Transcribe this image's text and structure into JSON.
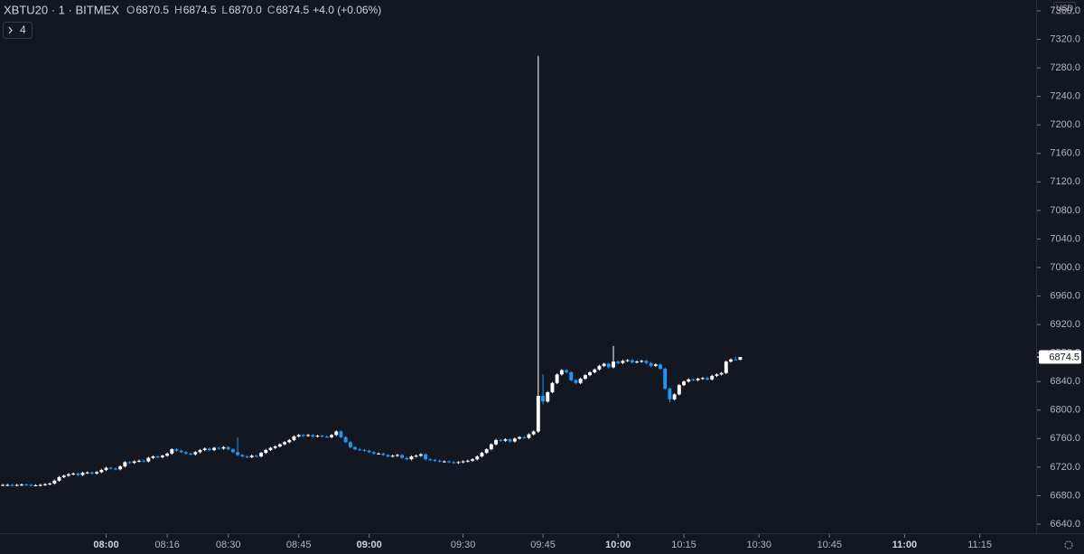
{
  "header": {
    "title": "XBTU20 · 1 · BITMEX",
    "ohlc": [
      {
        "key": "O",
        "value": "6870.5"
      },
      {
        "key": "H",
        "value": "6874.5"
      },
      {
        "key": "L",
        "value": "6870.0"
      },
      {
        "key": "C",
        "value": "6874.5"
      }
    ],
    "change": "+4.0 (+0.06%)",
    "indicators": "4"
  },
  "chart_data": {
    "type": "candlestick",
    "currency": "USD",
    "up_color": "#ffffff",
    "down_color": "#2196f3",
    "open": [
      6695,
      6695,
      6695,
      6694.5,
      6695,
      6695.5,
      6695,
      6694.5,
      6694.5,
      6695,
      6696,
      6697,
      6701,
      6706,
      6708,
      6710,
      6711,
      6709,
      6712,
      6712.5,
      6711,
      6713,
      6716,
      6719,
      6718,
      6717,
      6721,
      6727,
      6726,
      6728,
      6729,
      6728,
      6733,
      6735,
      6734,
      6736,
      6739,
      6745,
      6743,
      6741,
      6739,
      6738,
      6741,
      6744,
      6746,
      6744,
      6747,
      6746,
      6748,
      6745,
      6741,
      6737,
      6735,
      6734,
      6736,
      6735,
      6740,
      6744,
      6747,
      6749,
      6752,
      6755,
      6758,
      6763,
      6765,
      6764,
      6765,
      6763,
      6764,
      6763,
      6762,
      6765,
      6770,
      6762,
      6755,
      6748,
      6745,
      6744,
      6743,
      6741,
      6739,
      6739,
      6737,
      6735,
      6736,
      6737,
      6733,
      6731,
      6735,
      6736,
      6738,
      6731,
      6730,
      6729,
      6728,
      6728,
      6727,
      6726,
      6727,
      6728,
      6729,
      6731,
      6735,
      6740,
      6745,
      6752,
      6758,
      6757,
      6759,
      6756,
      6760,
      6762,
      6761,
      6766,
      6770,
      6820,
      6812,
      6825,
      6838,
      6850,
      6856,
      6853,
      6842,
      6838,
      6844,
      6849,
      6853,
      6857,
      6862,
      6865,
      6860,
      6868,
      6866,
      6869,
      6870,
      6867,
      6868,
      6869,
      6866,
      6862,
      6864,
      6858,
      6830,
      6815,
      6822,
      6835,
      6840,
      6843,
      6842,
      6844,
      6845,
      6843,
      6848,
      6850,
      6852,
      6868,
      6871,
      6870.5
    ],
    "high": [
      6696.5,
      6696.5,
      6696.5,
      6696.5,
      6697,
      6697,
      6696.5,
      6696,
      6696.5,
      6697.5,
      6698.5,
      6702.5,
      6707.5,
      6709.5,
      6711.5,
      6712.5,
      6712.5,
      6713.5,
      6714,
      6714,
      6714.5,
      6717.5,
      6720.5,
      6720.5,
      6719.5,
      6722.5,
      6728.5,
      6728.5,
      6729.5,
      6730.5,
      6730.5,
      6734.5,
      6736.5,
      6736.5,
      6737.5,
      6740.5,
      6746.5,
      6746.5,
      6744.5,
      6742.5,
      6740.5,
      6742.5,
      6745.5,
      6747.5,
      6747.5,
      6748.5,
      6748.5,
      6749.5,
      6749.5,
      6746.5,
      6762,
      6738.5,
      6736.5,
      6737.5,
      6737.5,
      6741.5,
      6745.5,
      6748.5,
      6750.5,
      6753.5,
      6756.5,
      6759.5,
      6764.5,
      6766.5,
      6766.5,
      6766.5,
      6766.5,
      6765.5,
      6765.5,
      6764.5,
      6766.5,
      6771.5,
      6771.5,
      6763.5,
      6756.5,
      6749.5,
      6746.5,
      6745.5,
      6744.5,
      6742.5,
      6740.5,
      6740.5,
      6738.5,
      6737.5,
      6738.5,
      6738.5,
      6734.5,
      6736.5,
      6737.5,
      6739.5,
      6739.5,
      6732.5,
      6731.5,
      6730.5,
      6729.5,
      6729.5,
      6728.5,
      6728.5,
      6729.5,
      6730.5,
      6732.5,
      6736.5,
      6741.5,
      6746.5,
      6753.5,
      6759.5,
      6759.5,
      6760.5,
      6760.5,
      6761.5,
      6763.5,
      6763.5,
      6767.5,
      6771.5,
      7297,
      6850,
      6826.5,
      6839.5,
      6851.5,
      6857.5,
      6857.5,
      6854.5,
      6843.5,
      6845.5,
      6850.5,
      6854.5,
      6858.5,
      6863.5,
      6866.5,
      6866.5,
      6890,
      6869.5,
      6870.5,
      6871.5,
      6871.5,
      6869.5,
      6870.5,
      6870.5,
      6867.5,
      6865.5,
      6865.5,
      6859.5,
      6831.5,
      6823.5,
      6836.5,
      6841.5,
      6844.5,
      6844.5,
      6845.5,
      6846.5,
      6846.5,
      6849.5,
      6851.5,
      6853.5,
      6869.5,
      6872.5,
      6875,
      6874.5
    ],
    "low": [
      6693.5,
      6693.5,
      6693,
      6693,
      6693.5,
      6693.5,
      6693,
      6693,
      6693,
      6693.5,
      6694.5,
      6695.5,
      6699.5,
      6704.5,
      6706.5,
      6708.5,
      6707.5,
      6707.5,
      6710.5,
      6709.5,
      6709.5,
      6711.5,
      6714.5,
      6716.5,
      6715.5,
      6715.5,
      6719.5,
      6724.5,
      6724.5,
      6726.5,
      6726.5,
      6726.5,
      6731.5,
      6732.5,
      6732.5,
      6734.5,
      6737.5,
      6741.5,
      6739.5,
      6737.5,
      6736.5,
      6736.5,
      6739.5,
      6742.5,
      6742.5,
      6742.5,
      6744.5,
      6744.5,
      6743.5,
      6739.5,
      6735.5,
      6733.5,
      6732.5,
      6732.5,
      6733.5,
      6733.5,
      6738.5,
      6742.5,
      6745.5,
      6747.5,
      6750.5,
      6753.5,
      6756.5,
      6761.5,
      6762.5,
      6762.5,
      6761.5,
      6761.5,
      6761.5,
      6760.5,
      6760.5,
      6763.5,
      6760.5,
      6753.5,
      6746.5,
      6743.5,
      6742.5,
      6741.5,
      6739.5,
      6737.5,
      6737.5,
      6735.5,
      6733.5,
      6733.5,
      6734.5,
      6731.5,
      6729.5,
      6729.5,
      6733.5,
      6734.5,
      6729.5,
      6728.5,
      6727.5,
      6726.5,
      6726.5,
      6725.5,
      6724.5,
      6724.5,
      6725.5,
      6726.5,
      6727.5,
      6729.5,
      6733.5,
      6738.5,
      6743.5,
      6750.5,
      6755.5,
      6755.5,
      6754.5,
      6754.5,
      6758.5,
      6759.5,
      6759.5,
      6764.5,
      6768,
      6808,
      6810.5,
      6823.5,
      6836.5,
      6848.5,
      6851.5,
      6840.5,
      6836.5,
      6836.5,
      6842.5,
      6847.5,
      6851.5,
      6855.5,
      6860.5,
      6858.5,
      6858.5,
      6864.5,
      6864.5,
      6867.5,
      6865.5,
      6865.5,
      6866.5,
      6864.5,
      6860.5,
      6860.5,
      6856.5,
      6828.5,
      6811,
      6813.5,
      6820.5,
      6833.5,
      6838.5,
      6840.5,
      6840.5,
      6842.5,
      6841.5,
      6841.5,
      6846.5,
      6848.5,
      6850.5,
      6866.5,
      6869.5,
      6870
    ],
    "close": [
      6695,
      6695,
      6694.5,
      6695,
      6695.5,
      6695,
      6694.5,
      6694.5,
      6695,
      6696,
      6697,
      6701,
      6706,
      6708,
      6710,
      6711,
      6709,
      6712,
      6712.5,
      6711,
      6713,
      6716,
      6719,
      6718,
      6717,
      6721,
      6727,
      6726,
      6728,
      6729,
      6728,
      6733,
      6735,
      6734,
      6736,
      6739,
      6745,
      6743,
      6741,
      6739,
      6738,
      6741,
      6744,
      6746,
      6744,
      6747,
      6746,
      6748,
      6745,
      6741,
      6737,
      6735,
      6734,
      6736,
      6735,
      6740,
      6744,
      6747,
      6749,
      6752,
      6755,
      6758,
      6763,
      6765,
      6764,
      6765,
      6763,
      6764,
      6763,
      6762,
      6765,
      6770,
      6762,
      6755,
      6748,
      6745,
      6744,
      6743,
      6741,
      6739,
      6739,
      6737,
      6735,
      6736,
      6737,
      6733,
      6731,
      6735,
      6736,
      6738,
      6731,
      6730,
      6729,
      6728,
      6728,
      6727,
      6726,
      6727,
      6728,
      6729,
      6731,
      6735,
      6740,
      6745,
      6752,
      6758,
      6757,
      6759,
      6756,
      6760,
      6762,
      6761,
      6766,
      6770,
      6820,
      6812,
      6825,
      6838,
      6850,
      6856,
      6853,
      6842,
      6838,
      6844,
      6849,
      6853,
      6857,
      6862,
      6865,
      6860,
      6868,
      6866,
      6869,
      6870,
      6867,
      6868,
      6869,
      6866,
      6862,
      6864,
      6858,
      6830,
      6815,
      6822,
      6835,
      6840,
      6843,
      6842,
      6844,
      6845,
      6843,
      6848,
      6850,
      6852,
      6868,
      6871,
      6870.5,
      6874.5
    ],
    "xlim": [
      -0.6,
      220
    ],
    "xticks": [
      {
        "value": 22,
        "label": "08:00"
      },
      {
        "value": 35,
        "label": "08:16"
      },
      {
        "value": 48,
        "label": "08:30"
      },
      {
        "value": 63,
        "label": "08:45"
      },
      {
        "value": 78,
        "label": "09:00"
      },
      {
        "value": 98,
        "label": "09:30"
      },
      {
        "value": 115,
        "label": "09:45"
      },
      {
        "value": 131,
        "label": "10:00"
      },
      {
        "value": 145,
        "label": "10:15"
      },
      {
        "value": 161,
        "label": "10:30"
      },
      {
        "value": 176,
        "label": "10:45"
      },
      {
        "value": 192,
        "label": "11:00"
      },
      {
        "value": 208,
        "label": "11:15"
      }
    ],
    "ylim": [
      6627.3,
      7375.2
    ],
    "yticks": [
      {
        "value": 6640,
        "label": "6640.0"
      },
      {
        "value": 6680,
        "label": "6680.0"
      },
      {
        "value": 6720,
        "label": "6720.0"
      },
      {
        "value": 6760,
        "label": "6760.0"
      },
      {
        "value": 6800,
        "label": "6800.0"
      },
      {
        "value": 6840,
        "label": "6840.0"
      },
      {
        "value": 6880,
        "label": "6880.0"
      },
      {
        "value": 6920,
        "label": "6920.0"
      },
      {
        "value": 6960,
        "label": "6960.0"
      },
      {
        "value": 7000,
        "label": "7000.0"
      },
      {
        "value": 7040,
        "label": "7040.0"
      },
      {
        "value": 7080,
        "label": "7080.0"
      },
      {
        "value": 7120,
        "label": "7120.0"
      },
      {
        "value": 7160,
        "label": "7160.0"
      },
      {
        "value": 7200,
        "label": "7200.0"
      },
      {
        "value": 7240,
        "label": "7240.0"
      },
      {
        "value": 7280,
        "label": "7280.0"
      },
      {
        "value": 7320,
        "label": "7320.0"
      },
      {
        "value": 7360,
        "label": "7360.0"
      }
    ]
  }
}
